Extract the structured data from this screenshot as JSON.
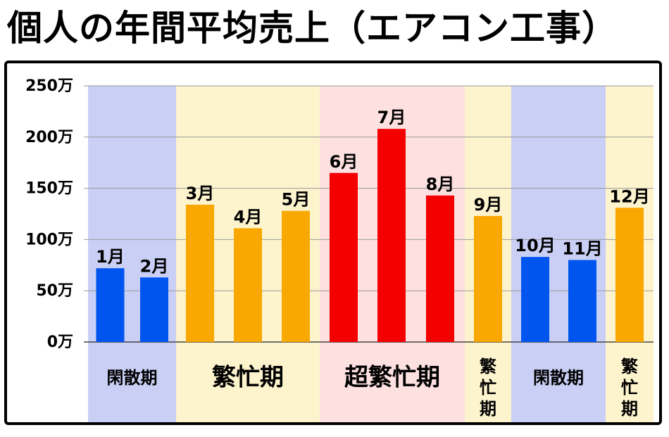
{
  "page_title": "個人の年間平均売上（エアコン工事）",
  "chart_data": {
    "type": "bar",
    "categories": [
      "1月",
      "2月",
      "3月",
      "4月",
      "5月",
      "6月",
      "7月",
      "8月",
      "9月",
      "10月",
      "11月",
      "12月"
    ],
    "values": [
      72,
      63,
      134,
      111,
      128,
      165,
      208,
      143,
      123,
      83,
      80,
      131
    ],
    "unit": "万",
    "ylim": [
      0,
      250
    ],
    "yticks": [
      "0万",
      "50万",
      "100万",
      "150万",
      "200万",
      "250万"
    ],
    "ytick_values": [
      0,
      50,
      100,
      150,
      200,
      250
    ],
    "grid": true,
    "seasons": [
      {
        "label": "閑散期",
        "months": [
          1,
          2
        ],
        "bg": "#c9cff5",
        "bar": "#0055ee",
        "vertical": false,
        "size": "small"
      },
      {
        "label": "繁忙期",
        "months": [
          3,
          4,
          5
        ],
        "bg": "#fdf3cd",
        "bar": "#f8a800",
        "vertical": false,
        "size": "large"
      },
      {
        "label": "超繁忙期",
        "months": [
          6,
          7,
          8
        ],
        "bg": "#fde0e0",
        "bar": "#f50000",
        "vertical": false,
        "size": "large"
      },
      {
        "label": "繁忙期",
        "months": [
          9
        ],
        "bg": "#fdf3cd",
        "bar": "#f8a800",
        "vertical": true,
        "size": "small"
      },
      {
        "label": "閑散期",
        "months": [
          10,
          11
        ],
        "bg": "#c9cff5",
        "bar": "#0055ee",
        "vertical": false,
        "size": "small"
      },
      {
        "label": "繁忙期",
        "months": [
          12
        ],
        "bg": "#fdf3cd",
        "bar": "#f8a800",
        "vertical": true,
        "size": "small"
      }
    ]
  }
}
